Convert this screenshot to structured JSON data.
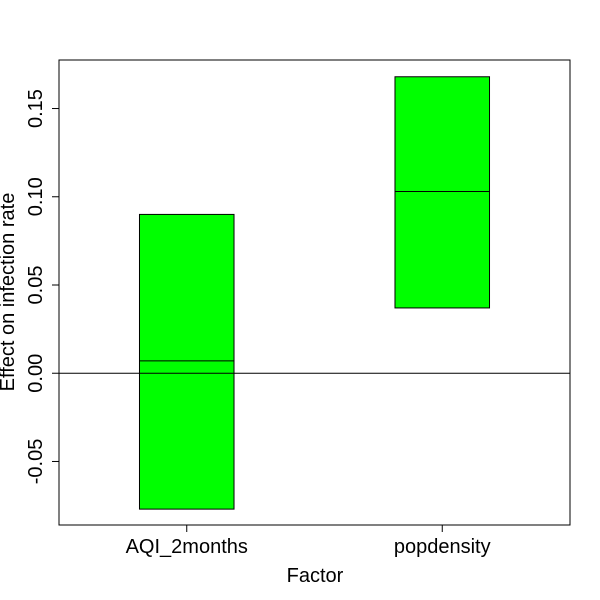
{
  "chart_data": {
    "type": "bar",
    "title": "",
    "xlabel": "Factor",
    "ylabel": "Effect on infection rate",
    "categories": [
      "AQI_2months",
      "popdensity"
    ],
    "series": [
      {
        "lower": [
          -0.077,
          0.037
        ],
        "median": [
          0.007,
          0.103
        ],
        "upper": [
          0.09,
          0.168
        ]
      }
    ],
    "ylim": [
      -0.086,
      0.1775
    ],
    "yticks": [
      -0.05,
      0.0,
      0.05,
      0.1,
      0.15
    ],
    "ytick_labels": [
      "-0.05",
      "0.00",
      "0.05",
      "0.10",
      "0.15"
    ],
    "reference_line": 0,
    "bar_color": "#00ff00",
    "grid": false,
    "legend": "none"
  }
}
